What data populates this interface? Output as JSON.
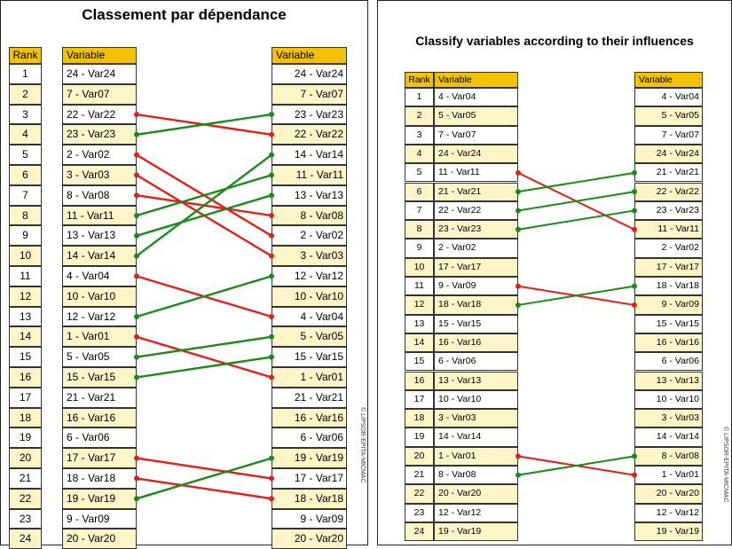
{
  "left_panel": {
    "title": "Classement par dépendance",
    "rank_header": "Rank",
    "variable_header": "Variable",
    "right_header": "Variable",
    "left_column": [
      "24 - Var24",
      "7 - Var07",
      "22 - Var22",
      "23 - Var23",
      "2 - Var02",
      "3 - Var03",
      "8 - Var08",
      "11 - Var11",
      "13 - Var13",
      "14 - Var14",
      "4 - Var04",
      "10 - Var10",
      "12 - Var12",
      "1 - Var01",
      "5 - Var05",
      "15 - Var15",
      "21 - Var21",
      "16 - Var16",
      "6 - Var06",
      "17 - Var17",
      "18 - Var18",
      "19 - Var19",
      "9 - Var09",
      "20 - Var20"
    ],
    "right_column": [
      "24 - Var24",
      "7 - Var07",
      "23 - Var23",
      "22 - Var22",
      "14 - Var14",
      "11 - Var11",
      "13 - Var13",
      "8 - Var08",
      "2 - Var02",
      "3 - Var03",
      "12 - Var12",
      "10 - Var10",
      "4 - Var04",
      "5 - Var05",
      "15 - Var15",
      "1 - Var01",
      "21 - Var21",
      "16 - Var16",
      "6 - Var06",
      "19 - Var19",
      "17 - Var17",
      "18 - Var18",
      "9 - Var09",
      "20 - Var20"
    ],
    "copyright": "© LIPSOR-EPITA-MICMAC"
  },
  "right_panel": {
    "title": "Classify variables according to their influences",
    "rank_header": "Rank",
    "variable_header": "Variable",
    "right_header": "Variable",
    "left_column": [
      "4 - Var04",
      "5 - Var05",
      "7 - Var07",
      "24 - Var24",
      "11 - Var11",
      "21 - Var21",
      "22 - Var22",
      "23 - Var23",
      "2 - Var02",
      "17 - Var17",
      "9 - Var09",
      "18 - Var18",
      "15 - Var15",
      "16 - Var16",
      "6 - Var06",
      "13 - Var13",
      "10 - Var10",
      "3 - Var03",
      "14 - Var14",
      "1 - Var01",
      "8 - Var08",
      "20 - Var20",
      "12 - Var12",
      "19 - Var19"
    ],
    "right_column": [
      "4 - Var04",
      "5 - Var05",
      "7 - Var07",
      "24 - Var24",
      "21 - Var21",
      "22 - Var22",
      "23 - Var23",
      "11 - Var11",
      "2 - Var02",
      "17 - Var17",
      "18 - Var18",
      "9 - Var09",
      "15 - Var15",
      "16 - Var16",
      "6 - Var06",
      "13 - Var13",
      "10 - Var10",
      "3 - Var03",
      "14 - Var14",
      "8 - Var08",
      "1 - Var01",
      "20 - Var20",
      "12 - Var12",
      "19 - Var19"
    ],
    "copyright": "© LIPSOR-EPITA-MICMAC"
  },
  "colors": {
    "header": "#f2c200",
    "band": "#fdf4c8",
    "rise": "#1a8a1a",
    "fall": "#e0201c"
  }
}
